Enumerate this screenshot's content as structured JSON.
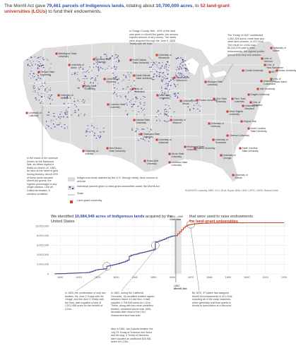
{
  "headline": {
    "part1": "The Morrill Act gave ",
    "part2": "79,461 parcels of Indigenous lands",
    "part3": ", totaling about ",
    "part4": "10,700,000 acres",
    "part5": ", to ",
    "part6": "52 land-grant universities (LGUs)",
    "part7": " to fund their endowments."
  },
  "colors": {
    "parcel": "#5a4fa6",
    "lgu": "#d23a2a",
    "land": "#dcdcdc",
    "state_line": "#ffffff",
    "grid": "#e6e6e6",
    "blue_line": "#3d4a9a",
    "red_line": "#d0431e"
  },
  "map": {
    "annotations": {
      "calif": "In the midst of the violence known as the Mariposa War, six tribes signed a treaty on March 19, 1851, for land at the heart of gold mining territory. About 20% of these lands became Morrill Act grants, the highest percentage of any single cession. Like all California treaties, it remains unratified.",
      "kansas": "In Osage County, Neb., 40% of the land was given to Morrill Act grants, the second highest amount of any county. The lands were acquired through the June 3, 1825 Treaty with the Kaw.",
      "treaty1837": "The Treaty of 1837 contributed 1,062,334 acres, more than any other land cession, to 33 LGUs. The result for LGUs was $2,242,219 paid to their endowments, the highest profits gained from any one cession."
    },
    "universities": [
      "Univ. of Vermont",
      "University of Maine",
      "Univ. of New Hampshire",
      "Univ. of Rhode Island",
      "Cornell University",
      "MIT",
      "Yale University",
      "Rutgers University",
      "Univ. of Delaware",
      "University of Maryland",
      "Penn State University",
      "University of Connecticut",
      "Ohio State University",
      "Purdue University",
      "University of Illinois",
      "Michigan State University",
      "University of Wisconsin",
      "University of Minnesota",
      "Iowa State University",
      "University of Missouri",
      "University of Kentucky",
      "West Virginia University",
      "Virginia Tech",
      "North Carolina State University",
      "University of Tennessee",
      "Clemson University",
      "University of Georgia",
      "South Carolina State University",
      "University of Florida",
      "Auburn University",
      "Mississippi State University",
      "Alcorn State University",
      "Louisiana State University",
      "University of Arkansas",
      "Texas A&M University",
      "University of Arizona",
      "New Mexico State University",
      "University of California",
      "Oregon State University",
      "Washington State University",
      "University of Idaho",
      "Montana State University",
      "University of Wyoming",
      "Colorado State University",
      "Utah State University",
      "University of Nevada",
      "Univ. of Nebraska",
      "Kansas State University",
      "North Dakota State University",
      "South Dakota State University",
      "Oklahoma State University",
      "Brown University"
    ],
    "legend": {
      "lands": "Indigenous lands claimed by the U.S. through treaty, land cession or seizure",
      "parcels": "Individual parcels given to land-grant universities under the Morrill Act",
      "state": "State",
      "lgu": "Land-grant university"
    },
    "sources": "SOURCES: Ancestry 1890; GLO; BLM; Royce 1896–1901; USFS; USGS; Natural Earth"
  },
  "chart_titles": {
    "left1": "We identified ",
    "left2": "10,684,949 acres of Indigenous lands",
    "left3": " acquired by the United States",
    "right1": "that were used to raise endowments",
    "right2": "for land-grant universities"
  },
  "chart_data": {
    "type": "line",
    "x_ticks": [
      1800,
      1810,
      1820,
      1830,
      1840,
      1850,
      1860,
      1870,
      1880,
      1890,
      1900,
      1910,
      1920
    ],
    "x_tick_labels": [
      "1800",
      "1810",
      "1820",
      "1830",
      "1840",
      "1850",
      "1860",
      "1870",
      "1880",
      "1890",
      "1900",
      "1910",
      "1920"
    ],
    "y_ticks": [
      0,
      2000000,
      4000000,
      6000000,
      8000000,
      10000000
    ],
    "y_tick_labels": [
      "0",
      "2,000,000",
      "4,000,000",
      "6,000,000",
      "8,000,000",
      "10,000,000"
    ],
    "xlim": [
      1795,
      1923
    ],
    "ylim": [
      0,
      11200000
    ],
    "series": [
      {
        "x": [
          1797,
          1798,
          1799,
          1800,
          1801,
          1802,
          1803,
          1804,
          1805,
          1806,
          1807,
          1808,
          1809,
          1810,
          1811,
          1812,
          1813,
          1814,
          1815,
          1816,
          1817,
          1818,
          1819,
          1820,
          1821,
          1822,
          1823,
          1824,
          1825,
          1826,
          1827,
          1828,
          1829,
          1830,
          1831,
          1832,
          1833,
          1834,
          1835,
          1836,
          1837,
          1838,
          1839,
          1840,
          1841,
          1842,
          1843,
          1844,
          1845,
          1846,
          1847,
          1848,
          1849,
          1850,
          1851,
          1852,
          1853,
          1854,
          1855,
          1856,
          1857,
          1858,
          1859,
          1860,
          1861,
          1862
        ],
        "y": [
          20000,
          30000,
          40000,
          50000,
          60000,
          70000,
          90000,
          110000,
          140000,
          150000,
          160000,
          180000,
          200000,
          210000,
          230000,
          240000,
          250000,
          270000,
          300000,
          420000,
          550000,
          700000,
          830000,
          900000,
          960000,
          990000,
          1020000,
          1080000,
          1620000,
          1700000,
          1780000,
          1880000,
          1960000,
          2050000,
          2140000,
          2280000,
          2400000,
          2520000,
          2640000,
          2860000,
          3700000,
          3900000,
          4000000,
          4080000,
          4180000,
          4300000,
          4400000,
          4480000,
          4560000,
          4660000,
          4760000,
          4880000,
          4960000,
          5060000,
          6600000,
          6740000,
          6900000,
          7040000,
          7160000,
          7320000,
          7520000,
          7680000,
          7800000,
          7900000,
          7960000,
          8020000
        ]
      },
      {
        "x": [
          1862,
          1863,
          1864,
          1865,
          1866,
          1867,
          1868,
          1869,
          1870,
          1871,
          1872,
          1873,
          1874,
          1875,
          1876,
          1877,
          1878,
          1879,
          1880,
          1881,
          1882,
          1883,
          1884,
          1885,
          1886,
          1887,
          1888,
          1889,
          1890,
          1891,
          1892,
          1893,
          1894,
          1895,
          1896,
          1897,
          1898,
          1899,
          1900,
          1905,
          1910,
          1915,
          1920
        ],
        "y": [
          8020000,
          8400000,
          8800000,
          9200000,
          9600000,
          9950000,
          10160000,
          10280000,
          10360000,
          10420000,
          10460000,
          10490000,
          10520000,
          10540000,
          10560000,
          10575000,
          10590000,
          10600000,
          10610000,
          10620000,
          10628000,
          10636000,
          10642000,
          10648000,
          10653000,
          10658000,
          10662000,
          10666000,
          10669000,
          10672000,
          10674000,
          10676000,
          10678000,
          10679000,
          10680000,
          10681000,
          10682000,
          10683000,
          10684000,
          10684500,
          10684949,
          10684949,
          10684949
        ]
      }
    ],
    "annotations": {
      "civil_war": "1861–1865 Civil War",
      "morrill_act": "1862 Morrill Act",
      "note1825": "In 1825, the combination of only two treaties, the June 2 Treaty with the Osage, and the June 3 Treaty with the Kaw, later supplied a total of 1,512,458 acres for the benefit of LGUs.",
      "note1851": "In 1851, during the California Genocide, 18 unratified treaties signed between March 19 and Nov. 4 later supplied 1,708,638 acres for LGUs. These, along with two more unratified treaties, remained secret until 1905, decades after most of the LGU endowment land was sold.",
      "note1851b": "Also in 1851, two Dakota treaties, the July 23 Treaty of Traverse des Sioux and the Aug. 5 Treaty of Mendota, later supplied an additional 826,981 acres for LGUs.",
      "note1870": "By 1870, 37 states had assigned Morrill Act endowments to 42 LGUs, including all of the early recipients, which generally sold their grants in blocks to speculators at a discount."
    }
  }
}
